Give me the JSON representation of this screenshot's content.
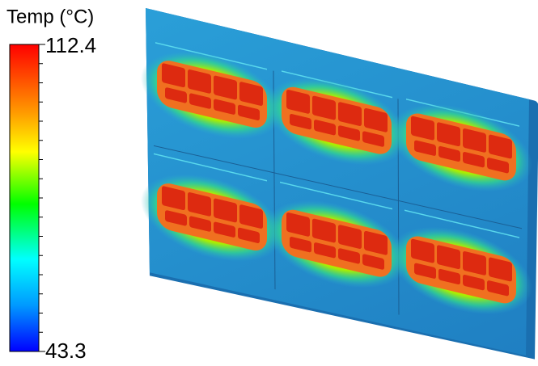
{
  "legend": {
    "title": "Temp (°C)",
    "max": 112.4,
    "min": 43.3
  }
}
